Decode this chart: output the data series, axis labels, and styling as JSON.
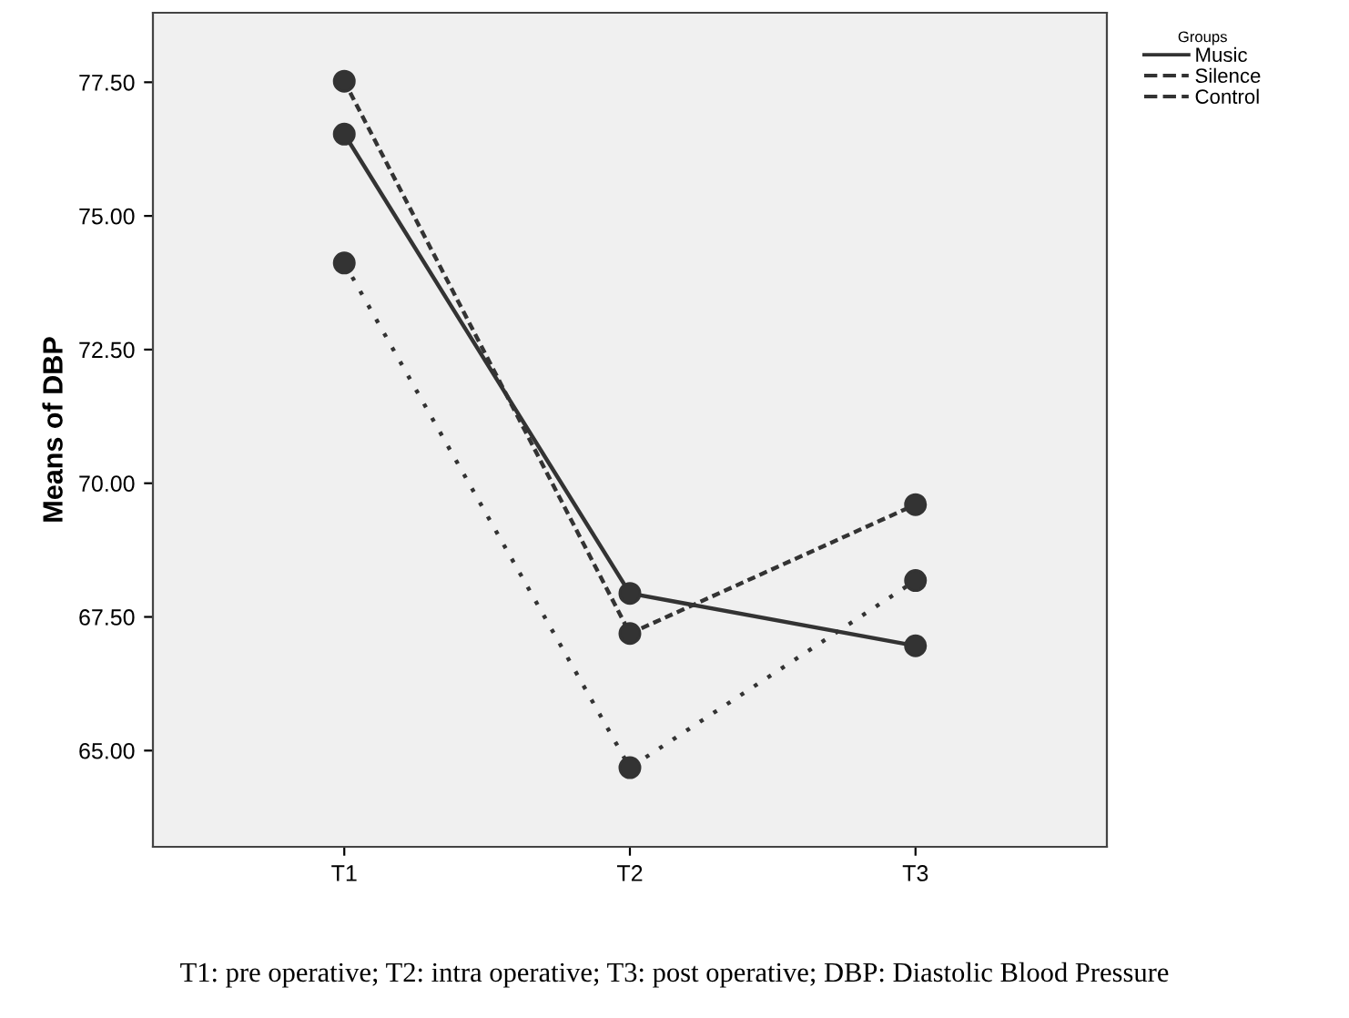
{
  "chart_data": {
    "type": "line",
    "ylabel": "Means of DBP",
    "legend_title": "Groups",
    "legend": "top right",
    "marker": "circle",
    "grid": false,
    "categories": [
      "T1",
      "T2",
      "T3"
    ],
    "ylim": [
      63.2,
      78.8
    ],
    "yticks": [
      {
        "value": 65,
        "label": "65.00"
      },
      {
        "value": 67.5,
        "label": "67.50"
      },
      {
        "value": 70,
        "label": "70.00"
      },
      {
        "value": 72.5,
        "label": "72.50"
      },
      {
        "value": 75,
        "label": "75.00"
      },
      {
        "value": 77.5,
        "label": "77.50"
      }
    ],
    "series": [
      {
        "name": "Music",
        "color": "#333333",
        "line_style": "solid",
        "values": [
          76.53,
          67.94,
          66.96
        ]
      },
      {
        "name": "Silence",
        "color": "#333333",
        "line_style": "dashed",
        "values": [
          77.52,
          67.19,
          69.6
        ]
      },
      {
        "name": "Control",
        "color": "#333333",
        "line_style": "dotted",
        "values": [
          74.12,
          64.68,
          68.18
        ]
      }
    ],
    "annotations": [
      "T1: pre operative; T2: intra operative; T3: post operative; DBP: Diastolic Blood Pressure"
    ]
  }
}
